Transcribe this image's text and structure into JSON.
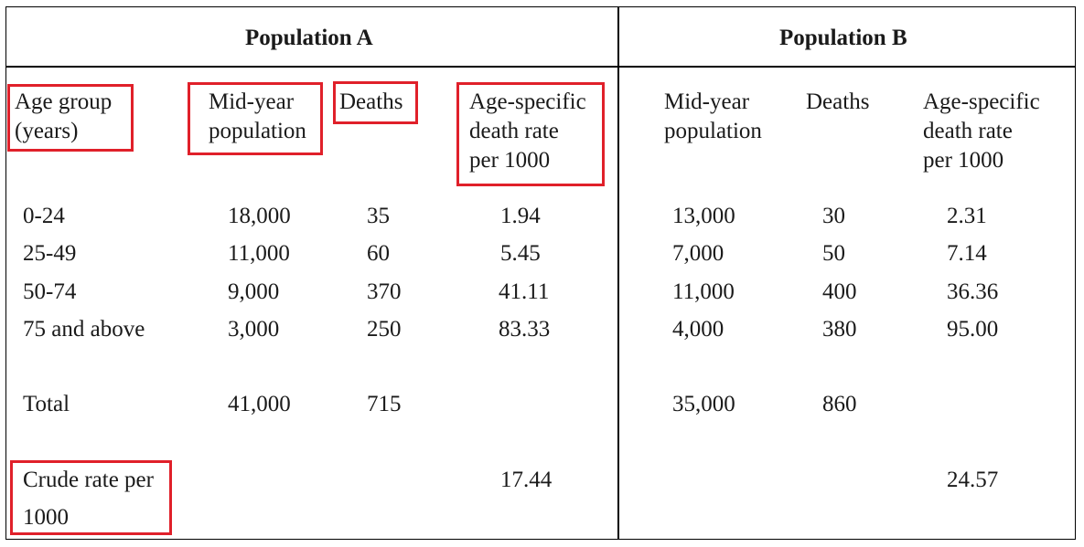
{
  "table": {
    "group_a": "Population A",
    "group_b": "Population B",
    "col_age": [
      "Age group",
      "(years)"
    ],
    "col_midyear": [
      "Mid-year",
      "population"
    ],
    "col_deaths": "Deaths",
    "col_rate": [
      "Age-specific",
      "death rate",
      "per 1000"
    ],
    "rows": [
      {
        "age": "0-24",
        "a_pop": "18,000",
        "a_deaths": "35",
        "a_rate": "1.94",
        "b_pop": "13,000",
        "b_deaths": "30",
        "b_rate": "2.31"
      },
      {
        "age": "25-49",
        "a_pop": "11,000",
        "a_deaths": "60",
        "a_rate": "5.45",
        "b_pop": "7,000",
        "b_deaths": "50",
        "b_rate": "7.14"
      },
      {
        "age": "50-74",
        "a_pop": "9,000",
        "a_deaths": "370",
        "a_rate": "41.11",
        "b_pop": "11,000",
        "b_deaths": "400",
        "b_rate": "36.36"
      },
      {
        "age": "75 and above",
        "a_pop": "3,000",
        "a_deaths": "250",
        "a_rate": "83.33",
        "b_pop": "4,000",
        "b_deaths": "380",
        "b_rate": "95.00"
      }
    ],
    "total": {
      "label": "Total",
      "a_pop": "41,000",
      "a_deaths": "715",
      "b_pop": "35,000",
      "b_deaths": "860"
    },
    "crude": {
      "label": [
        "Crude rate per",
        "1000"
      ],
      "a_rate": "17.44",
      "b_rate": "24.57"
    },
    "highlight_color": "#e0202a"
  }
}
